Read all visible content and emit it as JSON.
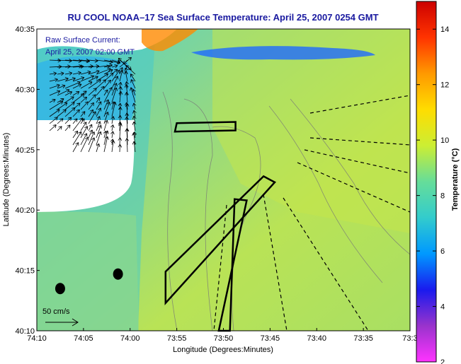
{
  "chart_data": {
    "type": "heatmap",
    "title": "RU COOL  NOAA–17  Sea Surface Temperature:  April 25, 2007 0254 GMT",
    "xlabel": "Longitude (Degrees:Minutes)",
    "ylabel": "Latitude (Degrees:Minutes)",
    "x_ticks": [
      "74:10",
      "74:05",
      "74:00",
      "73:55",
      "73:50",
      "73:45",
      "73:40",
      "73:35",
      "73:3"
    ],
    "y_ticks": [
      "40:10",
      "40:15",
      "40:20",
      "40:25",
      "40:30",
      "40:35"
    ],
    "xlim_minutes_west": [
      10,
      -30
    ],
    "ylim_minutes_north": [
      10,
      35
    ],
    "annotations": [
      "Raw Surface Current:",
      "April 25, 2007 02:00 GMT"
    ],
    "scale_label": "50 cm/s",
    "colorbar": {
      "label": "Temperature (°C)",
      "ticks": [
        2,
        4,
        6,
        8,
        10,
        12,
        14
      ],
      "range": [
        2,
        15
      ],
      "colors": [
        "#ff33ff",
        "#9933cc",
        "#1a1aee",
        "#0099ff",
        "#33cccc",
        "#66dd99",
        "#ccee33",
        "#ffdd00",
        "#ff9900",
        "#ff3300",
        "#cc0000"
      ]
    },
    "grid": false,
    "markers": [
      {
        "type": "dot",
        "lon_min": 1.3,
        "lat_min": 14.7
      },
      {
        "type": "dot",
        "lon_min": 7.5,
        "lat_min": 13.5
      }
    ],
    "glider_tracks": [
      {
        "type": "box",
        "points": [
          [
            -4.8,
            26.5
          ],
          [
            -11.3,
            26.6
          ],
          [
            -11.3,
            27.3
          ],
          [
            -5,
            27.2
          ]
        ]
      },
      {
        "type": "box",
        "points": [
          [
            -15.5,
            22.3
          ],
          [
            -14.3,
            22.8
          ],
          [
            -3.8,
            14.9
          ],
          [
            -3.8,
            12.3
          ]
        ]
      },
      {
        "type": "box",
        "points": [
          [
            -12.5,
            20.8
          ],
          [
            -11.2,
            20.9
          ],
          [
            -10.7,
            10
          ],
          [
            -9.5,
            10
          ]
        ]
      }
    ]
  }
}
